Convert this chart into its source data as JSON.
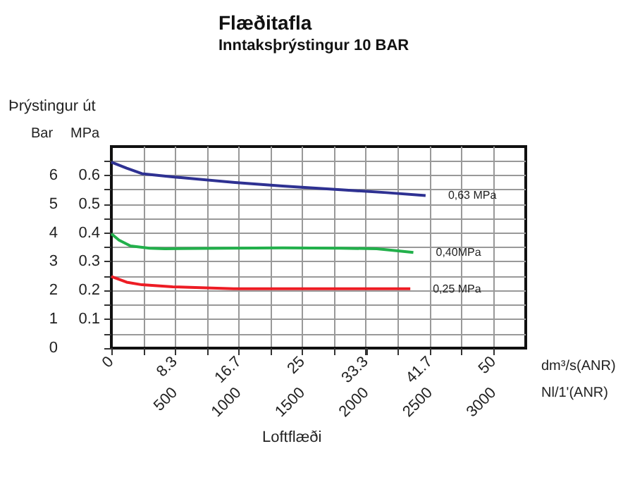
{
  "chart_data": {
    "type": "line",
    "title": "Flæðitafla",
    "subtitle": "Inntaksþrýstingur 10 BAR",
    "ylabel": "MPa",
    "y2label": "Bar",
    "xlabel": "dm³/s(ANR)",
    "x2label": "Nl/1'(ANR)",
    "annotations": [
      "Þrýstingur út",
      "Loftflæði"
    ],
    "series": [
      {
        "name": "0,63 MPa",
        "color": "#2e3192",
        "x": [
          0,
          2,
          4,
          8,
          16.2,
          22.4,
          30,
          36,
          41.1
        ],
        "values": [
          0.646,
          0.625,
          0.606,
          0.595,
          0.575,
          0.563,
          0.55,
          0.54,
          0.53
        ]
      },
      {
        "name": "0,40MPa",
        "color": "#22b04b",
        "x": [
          0,
          1,
          2.5,
          5,
          7,
          15,
          22.4,
          30,
          34.7,
          37.5,
          39.5
        ],
        "values": [
          0.397,
          0.375,
          0.355,
          0.347,
          0.345,
          0.347,
          0.348,
          0.347,
          0.345,
          0.338,
          0.332
        ]
      },
      {
        "name": "0,25 MPa",
        "color": "#ed1c24",
        "x": [
          0,
          2,
          4,
          8,
          16,
          25,
          32,
          39.1
        ],
        "values": [
          0.249,
          0.229,
          0.22,
          0.213,
          0.206,
          0.206,
          0.206,
          0.206
        ]
      }
    ],
    "xlim": [
      0,
      54.2
    ],
    "xticks": [
      0,
      {
        "value": 4.2,
        "label": null
      },
      8.3,
      {
        "value": 12.5,
        "label": null
      },
      16.7,
      {
        "value": 20.8,
        "label": null
      },
      25,
      {
        "value": 29.2,
        "label": null
      },
      33.3,
      {
        "value": 37.5,
        "label": null
      },
      41.7,
      {
        "value": 45.8,
        "label": null
      },
      50
    ],
    "x2lim": [
      0,
      3250
    ],
    "x2ticks": [
      500,
      1000,
      1500,
      2000,
      2500,
      3000
    ],
    "ylim": [
      0,
      0.7
    ],
    "yticks": [
      {
        "value": 0.05,
        "label": null
      },
      0.1,
      {
        "value": 0.15,
        "label": null
      },
      0.2,
      {
        "value": 0.25,
        "label": null
      },
      0.3,
      {
        "value": 0.35,
        "label": null
      },
      0.4,
      {
        "value": 0.45,
        "label": null
      },
      0.5,
      {
        "value": 0.55,
        "label": null
      },
      0.6,
      {
        "value": 0.65,
        "label": null
      }
    ],
    "y2lim": [
      0,
      7
    ],
    "y2ticks": [
      0,
      1,
      2,
      3,
      4,
      5,
      6
    ],
    "grid": true,
    "legend": false,
    "marker": "none",
    "line_style": "solid"
  }
}
